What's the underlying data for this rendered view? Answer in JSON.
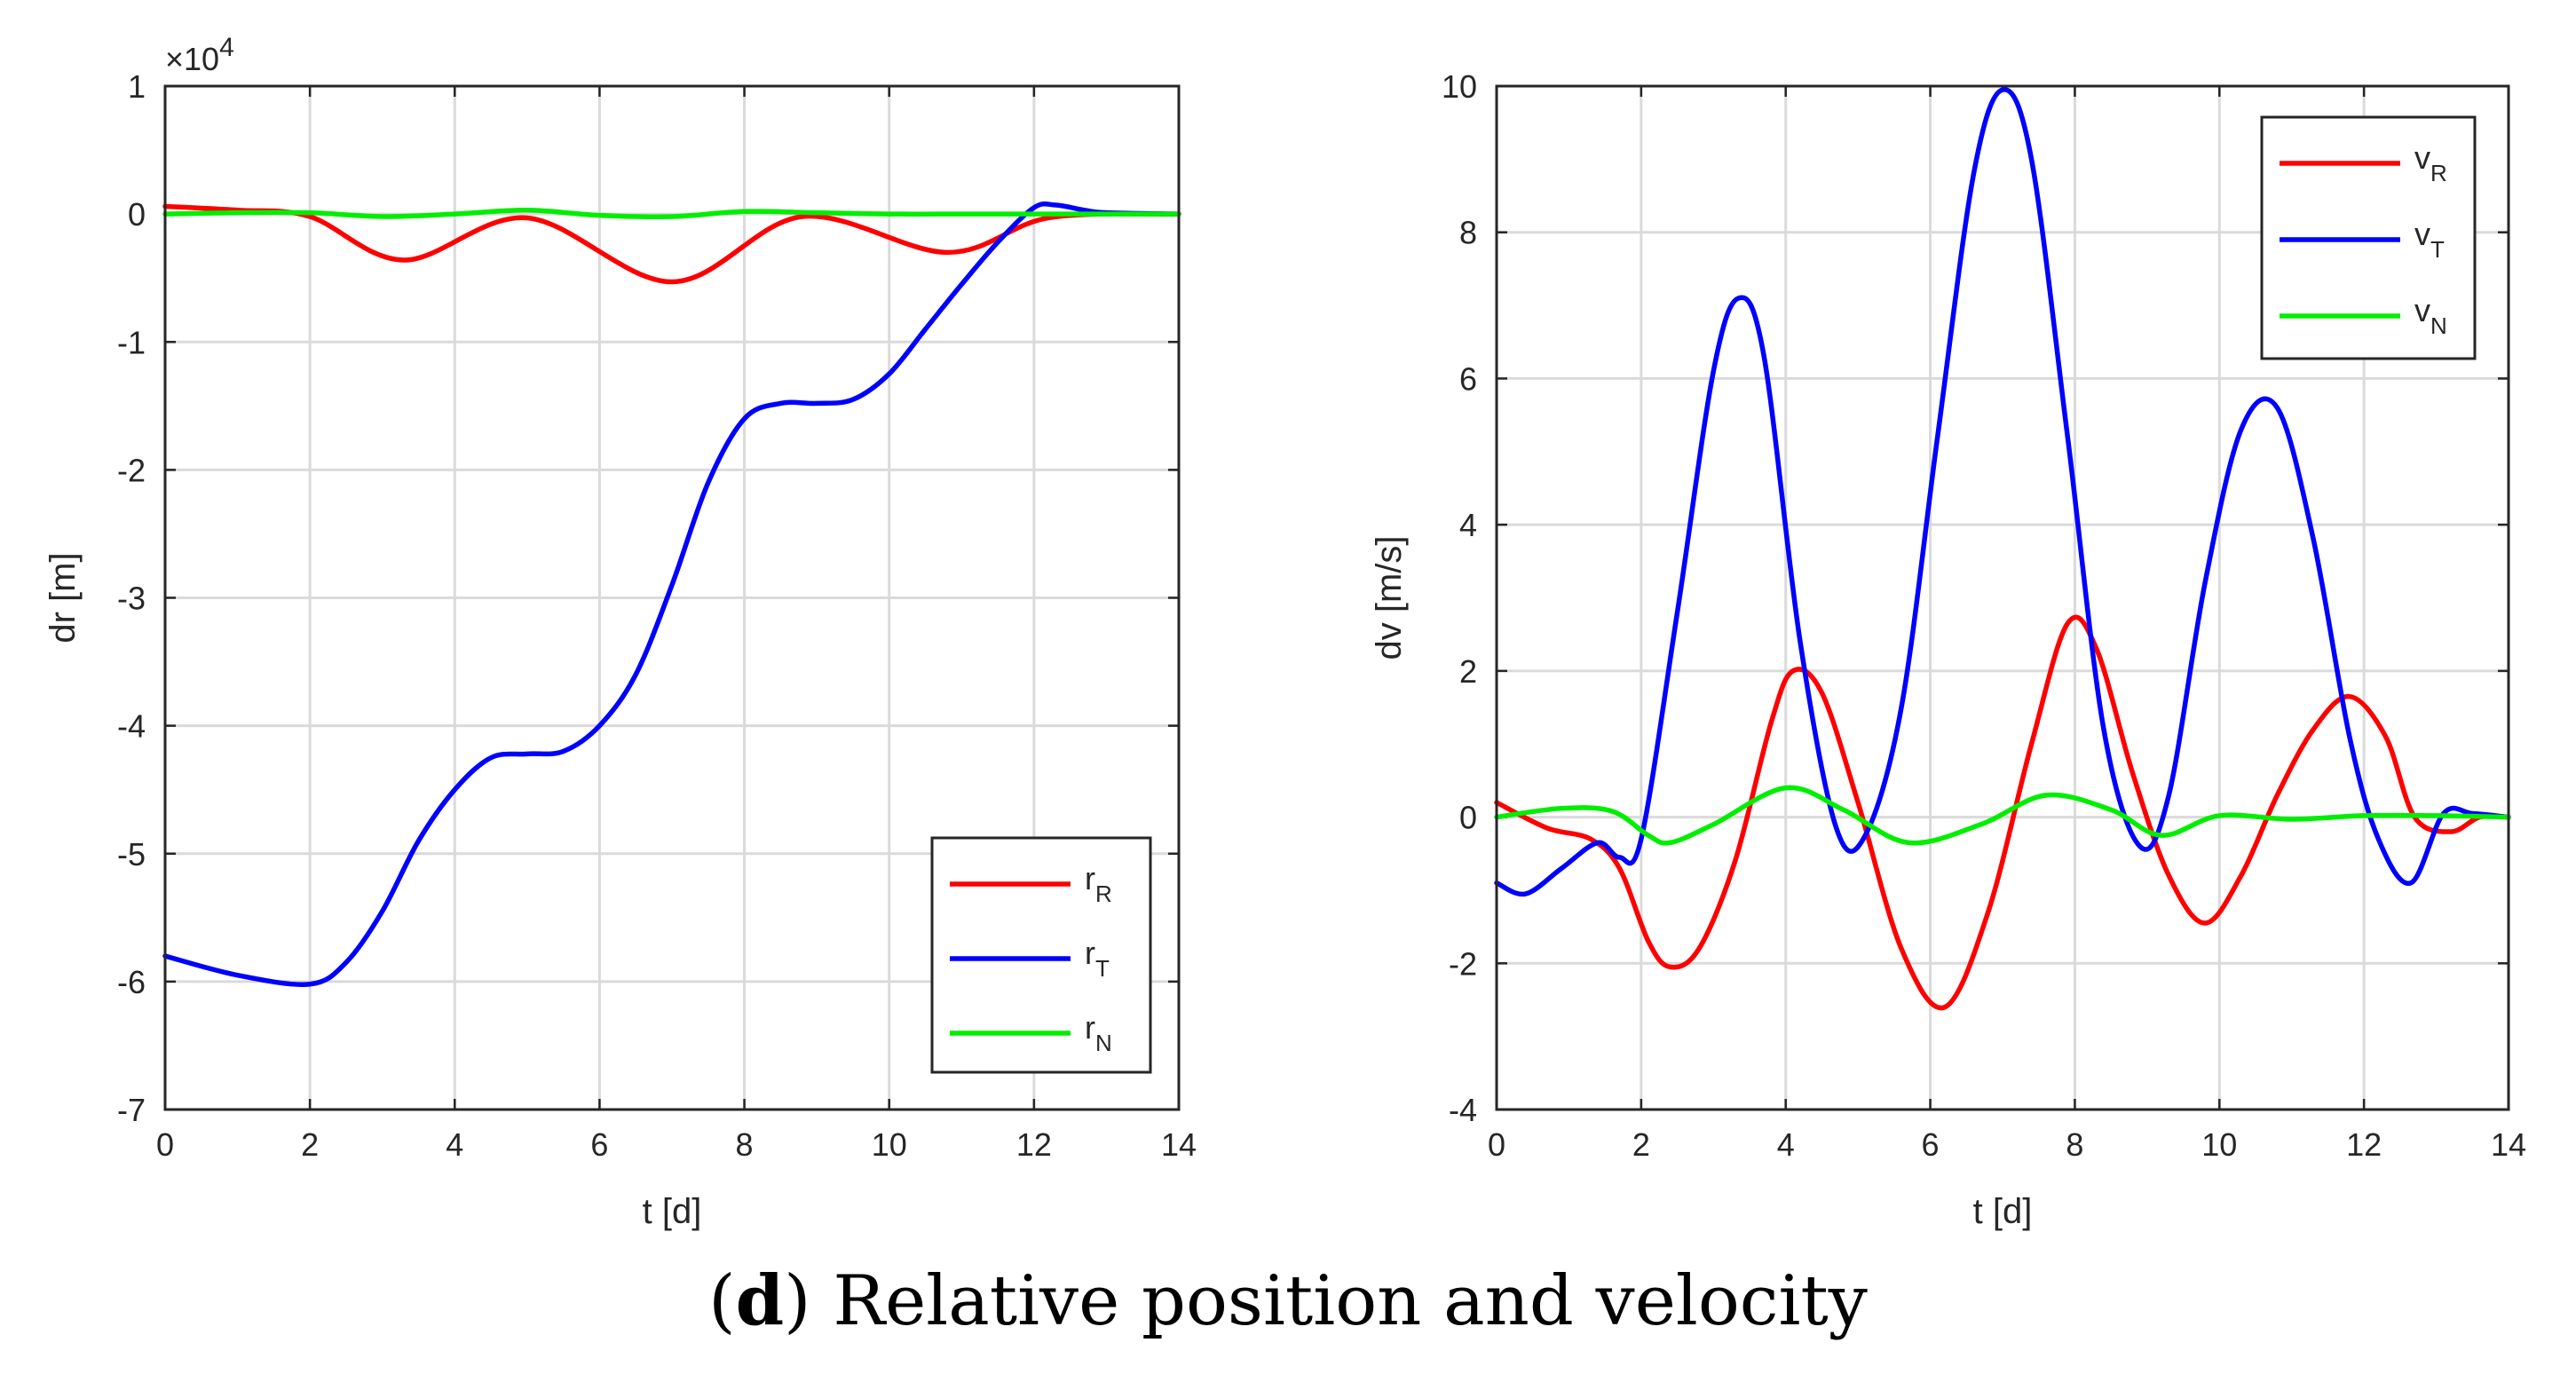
{
  "caption": {
    "open": "(",
    "letter": "d",
    "close": ")",
    "text": " Relative position and velocity"
  },
  "colors": {
    "r": "#ff0000",
    "t": "#0000ff",
    "n": "#00ee00"
  },
  "chart_data": [
    {
      "type": "line",
      "title": "",
      "xlabel": "t [d]",
      "ylabel": "dr [m]",
      "exponent_base": "×10",
      "exponent_power": "4",
      "xlim": [
        0,
        14
      ],
      "ylim": [
        -7,
        1
      ],
      "xticks": [
        0,
        2,
        4,
        6,
        8,
        10,
        12,
        14
      ],
      "yticks": [
        1,
        0,
        -1,
        -2,
        -3,
        -4,
        -5,
        -6,
        -7
      ],
      "legend_position": "bottom-right",
      "grid": true,
      "series": [
        {
          "name_base": "r",
          "name_sub": "R",
          "color": "#ff0000",
          "x": [
            0,
            1,
            2,
            3.3,
            5,
            7,
            8.8,
            10.8,
            12.2,
            14
          ],
          "y": [
            0.06,
            0.03,
            -0.02,
            -0.36,
            -0.03,
            -0.53,
            -0.02,
            -0.3,
            -0.03,
            0
          ]
        },
        {
          "name_base": "r",
          "name_sub": "T",
          "color": "#0000ff",
          "x": [
            0,
            1,
            2,
            2.5,
            3,
            3.5,
            4,
            4.5,
            5,
            5.5,
            6,
            6.5,
            7,
            7.5,
            8,
            8.5,
            9,
            9.5,
            10,
            10.5,
            11,
            11.5,
            12,
            12.3,
            12.7,
            13,
            14
          ],
          "y": [
            -5.8,
            -5.95,
            -6.02,
            -5.85,
            -5.45,
            -4.9,
            -4.5,
            -4.25,
            -4.22,
            -4.2,
            -4.0,
            -3.6,
            -2.9,
            -2.1,
            -1.6,
            -1.48,
            -1.48,
            -1.45,
            -1.25,
            -0.9,
            -0.55,
            -0.22,
            0.05,
            0.07,
            0.03,
            0.01,
            0
          ]
        },
        {
          "name_base": "r",
          "name_sub": "N",
          "color": "#00ee00",
          "x": [
            0,
            1,
            2,
            3,
            4,
            5,
            6,
            7,
            8,
            9,
            10,
            11,
            12,
            13,
            14
          ],
          "y": [
            0,
            0.01,
            0.01,
            -0.02,
            0.0,
            0.03,
            -0.01,
            -0.02,
            0.02,
            0.01,
            0,
            0,
            0,
            0,
            0
          ]
        }
      ]
    },
    {
      "type": "line",
      "title": "",
      "xlabel": "t [d]",
      "ylabel": "dv [m/s]",
      "xlim": [
        0,
        14
      ],
      "ylim": [
        -4,
        10
      ],
      "xticks": [
        0,
        2,
        4,
        6,
        8,
        10,
        12,
        14
      ],
      "yticks": [
        10,
        8,
        6,
        4,
        2,
        0,
        -2,
        -4
      ],
      "legend_position": "top-right",
      "grid": true,
      "series": [
        {
          "name_base": "v",
          "name_sub": "R",
          "color": "#ff0000",
          "x": [
            0,
            0.7,
            1.3,
            1.7,
            2.1,
            2.4,
            2.8,
            3.3,
            3.8,
            4.1,
            4.5,
            5.0,
            5.6,
            6.2,
            6.8,
            7.4,
            7.9,
            8.3,
            8.8,
            9.3,
            9.8,
            10.3,
            10.8,
            11.3,
            11.8,
            12.3,
            12.7,
            13.2,
            13.6,
            14
          ],
          "y": [
            0.2,
            -0.15,
            -0.3,
            -0.7,
            -1.7,
            -2.05,
            -1.8,
            -0.6,
            1.3,
            2.0,
            1.7,
            0.2,
            -1.8,
            -2.6,
            -1.3,
            1.0,
            2.65,
            2.3,
            0.6,
            -0.8,
            -1.45,
            -0.8,
            0.3,
            1.2,
            1.65,
            1.1,
            0.0,
            -0.2,
            0.0,
            0
          ]
        },
        {
          "name_base": "v",
          "name_sub": "T",
          "color": "#0000ff",
          "x": [
            0,
            0.4,
            0.9,
            1.4,
            1.7,
            2.0,
            2.5,
            3.0,
            3.35,
            3.7,
            4.2,
            4.7,
            5.1,
            5.6,
            6.1,
            6.6,
            7.0,
            7.4,
            7.9,
            8.4,
            8.9,
            9.3,
            9.8,
            10.3,
            10.8,
            11.3,
            11.8,
            12.2,
            12.65,
            13.1,
            13.5,
            14
          ],
          "y": [
            -0.9,
            -1.05,
            -0.7,
            -0.35,
            -0.55,
            -0.3,
            2.8,
            6.1,
            7.1,
            6.3,
            2.4,
            -0.15,
            -0.25,
            1.5,
            5.2,
            8.8,
            9.95,
            9.0,
            5.2,
            1.2,
            -0.4,
            0.3,
            3.2,
            5.3,
            5.6,
            3.8,
            1.1,
            -0.3,
            -0.9,
            0.05,
            0.05,
            0
          ]
        },
        {
          "name_base": "v",
          "name_sub": "N",
          "color": "#00ee00",
          "x": [
            0,
            0.9,
            1.6,
            2.1,
            2.4,
            3.0,
            4.0,
            4.8,
            5.7,
            6.7,
            7.6,
            8.5,
            9.2,
            10.0,
            11.0,
            12.0,
            13.0,
            14
          ],
          "y": [
            0.0,
            0.12,
            0.08,
            -0.25,
            -0.35,
            -0.1,
            0.4,
            0.1,
            -0.35,
            -0.1,
            0.3,
            0.1,
            -0.25,
            0.02,
            -0.03,
            0.02,
            0.02,
            0
          ]
        }
      ]
    }
  ]
}
